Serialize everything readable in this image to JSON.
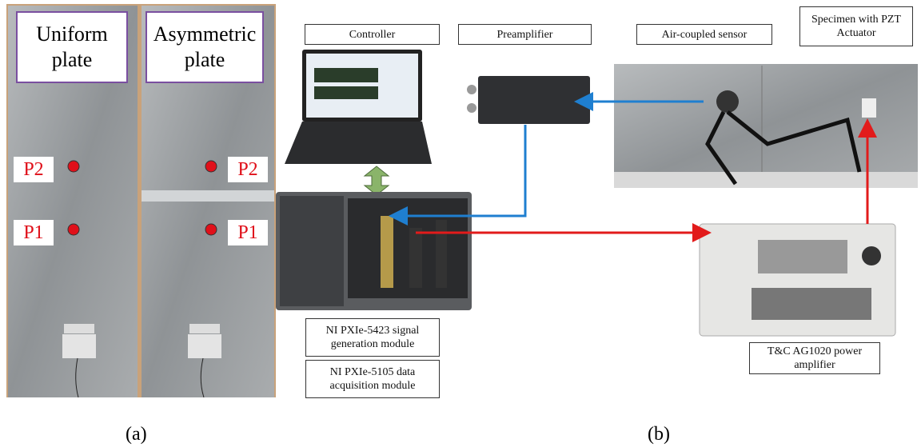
{
  "panel_a": {
    "plate_labels": [
      "Uniform plate",
      "Asymmetric plate"
    ],
    "points": {
      "left_p2": "P2",
      "left_p1": "P1",
      "right_p2": "P2",
      "right_p1": "P1"
    },
    "caption": "(a)"
  },
  "panel_b": {
    "labels": {
      "controller": "Controller",
      "preamplifier": "Preamplifier",
      "sensor": "Air-coupled sensor",
      "specimen": "Specimen with PZT Actuator",
      "signal_module": "NI PXIe-5423 signal generation module",
      "daq_module": "NI PXIe-5105 data acquisition module",
      "power_amplifier": "T&C AG1020 power amplifier"
    },
    "caption": "(b)"
  }
}
